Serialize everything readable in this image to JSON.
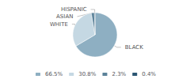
{
  "chart_data": {
    "type": "pie",
    "categories": [
      "BLACK",
      "WHITE",
      "ASIAN",
      "HISPANIC"
    ],
    "values": [
      66.5,
      30.8,
      2.3,
      0.4
    ],
    "colors": [
      "#8eafc2",
      "#c5d8e3",
      "#5b8299",
      "#2a5572"
    ],
    "legend_entries": [
      "66.5%",
      "30.8%",
      "2.3%",
      "0.4%"
    ],
    "legend": "bottom"
  }
}
